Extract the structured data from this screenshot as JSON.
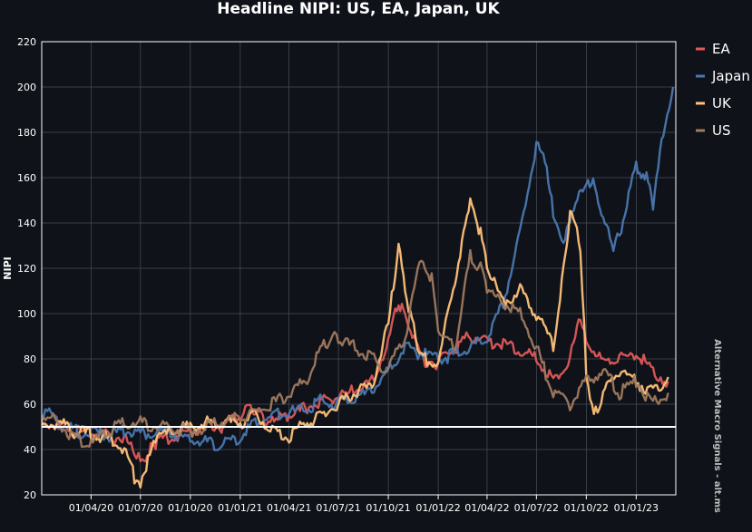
{
  "chart_data": {
    "type": "line",
    "title": "Headline NIPI: US, EA, Japan, UK",
    "xlabel": "",
    "ylabel": "NIPI",
    "x_tick_labels": [
      "01/04/20",
      "01/07/20",
      "01/10/20",
      "01/01/21",
      "01/04/21",
      "01/07/21",
      "01/10/21",
      "01/01/22",
      "01/04/22",
      "01/07/22",
      "01/10/22",
      "01/01/23"
    ],
    "x_range": [
      "2020-01-01",
      "2023-03-15"
    ],
    "ylim": [
      20,
      220
    ],
    "y_ticks": [
      20,
      40,
      60,
      80,
      100,
      120,
      140,
      160,
      180,
      200,
      220
    ],
    "reference_line": {
      "y": 50,
      "color": "#ffffff"
    },
    "grid": true,
    "legend_position": "right",
    "source_note": "Alternative Macro Signals - alt.ms",
    "series": [
      {
        "name": "EA",
        "color": "#e05a5a",
        "points": [
          [
            "2020-01-01",
            52
          ],
          [
            "2020-02-01",
            51
          ],
          [
            "2020-03-01",
            48
          ],
          [
            "2020-04-01",
            47
          ],
          [
            "2020-05-01",
            46
          ],
          [
            "2020-06-01",
            45
          ],
          [
            "2020-06-20",
            38
          ],
          [
            "2020-07-01",
            35
          ],
          [
            "2020-07-20",
            40
          ],
          [
            "2020-08-01",
            44
          ],
          [
            "2020-09-01",
            46
          ],
          [
            "2020-10-01",
            48
          ],
          [
            "2020-11-01",
            51
          ],
          [
            "2020-12-01",
            50
          ],
          [
            "2021-01-01",
            55
          ],
          [
            "2021-01-20",
            60
          ],
          [
            "2021-02-01",
            55
          ],
          [
            "2021-03-01",
            52
          ],
          [
            "2021-04-01",
            55
          ],
          [
            "2021-05-01",
            58
          ],
          [
            "2021-06-01",
            62
          ],
          [
            "2021-07-01",
            63
          ],
          [
            "2021-08-01",
            66
          ],
          [
            "2021-09-01",
            70
          ],
          [
            "2021-10-01",
            88
          ],
          [
            "2021-10-20",
            105
          ],
          [
            "2021-11-01",
            100
          ],
          [
            "2021-12-01",
            80
          ],
          [
            "2022-01-01",
            78
          ],
          [
            "2022-02-01",
            85
          ],
          [
            "2022-03-01",
            90
          ],
          [
            "2022-04-01",
            88
          ],
          [
            "2022-05-01",
            86
          ],
          [
            "2022-06-01",
            84
          ],
          [
            "2022-07-01",
            80
          ],
          [
            "2022-08-01",
            70
          ],
          [
            "2022-09-01",
            80
          ],
          [
            "2022-09-20",
            98
          ],
          [
            "2022-10-01",
            90
          ],
          [
            "2022-11-01",
            78
          ],
          [
            "2022-12-01",
            80
          ],
          [
            "2023-01-01",
            82
          ],
          [
            "2023-02-01",
            75
          ],
          [
            "2023-03-01",
            70
          ]
        ]
      },
      {
        "name": "Japan",
        "color": "#4a78b0",
        "points": [
          [
            "2020-01-01",
            58
          ],
          [
            "2020-02-01",
            52
          ],
          [
            "2020-03-01",
            48
          ],
          [
            "2020-04-01",
            47
          ],
          [
            "2020-05-01",
            46
          ],
          [
            "2020-06-01",
            48
          ],
          [
            "2020-07-01",
            47
          ],
          [
            "2020-08-01",
            48
          ],
          [
            "2020-09-01",
            47
          ],
          [
            "2020-10-01",
            44
          ],
          [
            "2020-11-01",
            43
          ],
          [
            "2020-12-01",
            42
          ],
          [
            "2021-01-01",
            46
          ],
          [
            "2021-02-01",
            52
          ],
          [
            "2021-03-01",
            55
          ],
          [
            "2021-04-01",
            56
          ],
          [
            "2021-05-01",
            58
          ],
          [
            "2021-06-01",
            62
          ],
          [
            "2021-07-01",
            60
          ],
          [
            "2021-08-01",
            62
          ],
          [
            "2021-09-01",
            66
          ],
          [
            "2021-10-01",
            75
          ],
          [
            "2021-11-01",
            85
          ],
          [
            "2021-12-01",
            82
          ],
          [
            "2022-01-01",
            80
          ],
          [
            "2022-02-01",
            82
          ],
          [
            "2022-03-01",
            85
          ],
          [
            "2022-04-01",
            90
          ],
          [
            "2022-05-01",
            105
          ],
          [
            "2022-06-01",
            135
          ],
          [
            "2022-07-01",
            175
          ],
          [
            "2022-07-20",
            165
          ],
          [
            "2022-08-01",
            145
          ],
          [
            "2022-08-20",
            130
          ],
          [
            "2022-09-01",
            140
          ],
          [
            "2022-10-01",
            160
          ],
          [
            "2022-10-20",
            155
          ],
          [
            "2022-11-01",
            140
          ],
          [
            "2022-11-20",
            130
          ],
          [
            "2022-12-01",
            135
          ],
          [
            "2023-01-01",
            165
          ],
          [
            "2023-01-20",
            160
          ],
          [
            "2023-02-01",
            148
          ],
          [
            "2023-02-20",
            180
          ],
          [
            "2023-03-10",
            200
          ]
        ]
      },
      {
        "name": "UK",
        "color": "#ffc27a",
        "points": [
          [
            "2020-01-01",
            50
          ],
          [
            "2020-02-01",
            52
          ],
          [
            "2020-03-01",
            48
          ],
          [
            "2020-04-01",
            47
          ],
          [
            "2020-05-01",
            45
          ],
          [
            "2020-06-01",
            40
          ],
          [
            "2020-06-20",
            28
          ],
          [
            "2020-07-01",
            26
          ],
          [
            "2020-07-15",
            35
          ],
          [
            "2020-08-01",
            45
          ],
          [
            "2020-09-01",
            48
          ],
          [
            "2020-10-01",
            50
          ],
          [
            "2020-11-01",
            52
          ],
          [
            "2020-12-01",
            52
          ],
          [
            "2021-01-01",
            52
          ],
          [
            "2021-02-01",
            55
          ],
          [
            "2021-03-01",
            48
          ],
          [
            "2021-04-01",
            45
          ],
          [
            "2021-05-01",
            52
          ],
          [
            "2021-06-01",
            55
          ],
          [
            "2021-07-01",
            60
          ],
          [
            "2021-08-01",
            65
          ],
          [
            "2021-09-01",
            68
          ],
          [
            "2021-10-01",
            95
          ],
          [
            "2021-10-20",
            130
          ],
          [
            "2021-11-01",
            110
          ],
          [
            "2021-11-20",
            90
          ],
          [
            "2021-12-01",
            80
          ],
          [
            "2022-01-01",
            78
          ],
          [
            "2022-02-01",
            115
          ],
          [
            "2022-02-20",
            140
          ],
          [
            "2022-03-01",
            150
          ],
          [
            "2022-03-20",
            135
          ],
          [
            "2022-04-01",
            120
          ],
          [
            "2022-05-01",
            105
          ],
          [
            "2022-06-01",
            110
          ],
          [
            "2022-07-01",
            100
          ],
          [
            "2022-08-01",
            85
          ],
          [
            "2022-08-20",
            120
          ],
          [
            "2022-09-01",
            145
          ],
          [
            "2022-09-20",
            130
          ],
          [
            "2022-10-01",
            75
          ],
          [
            "2022-10-15",
            55
          ],
          [
            "2022-11-01",
            65
          ],
          [
            "2022-12-01",
            75
          ],
          [
            "2023-01-01",
            70
          ],
          [
            "2023-02-01",
            65
          ],
          [
            "2023-03-01",
            72
          ]
        ]
      },
      {
        "name": "US",
        "color": "#a07a5f",
        "points": [
          [
            "2020-01-01",
            55
          ],
          [
            "2020-02-01",
            52
          ],
          [
            "2020-03-01",
            45
          ],
          [
            "2020-04-01",
            42
          ],
          [
            "2020-05-01",
            48
          ],
          [
            "2020-06-01",
            52
          ],
          [
            "2020-07-01",
            52
          ],
          [
            "2020-08-01",
            50
          ],
          [
            "2020-09-01",
            49
          ],
          [
            "2020-10-01",
            48
          ],
          [
            "2020-11-01",
            50
          ],
          [
            "2020-12-01",
            52
          ],
          [
            "2021-01-01",
            54
          ],
          [
            "2021-02-01",
            57
          ],
          [
            "2021-03-01",
            60
          ],
          [
            "2021-04-01",
            65
          ],
          [
            "2021-05-01",
            70
          ],
          [
            "2021-06-01",
            85
          ],
          [
            "2021-06-20",
            90
          ],
          [
            "2021-07-01",
            88
          ],
          [
            "2021-08-01",
            85
          ],
          [
            "2021-09-01",
            80
          ],
          [
            "2021-10-01",
            75
          ],
          [
            "2021-11-01",
            90
          ],
          [
            "2021-12-01",
            125
          ],
          [
            "2021-12-20",
            115
          ],
          [
            "2022-01-01",
            90
          ],
          [
            "2022-02-01",
            85
          ],
          [
            "2022-03-01",
            125
          ],
          [
            "2022-03-20",
            120
          ],
          [
            "2022-04-01",
            110
          ],
          [
            "2022-05-01",
            105
          ],
          [
            "2022-06-01",
            100
          ],
          [
            "2022-07-01",
            85
          ],
          [
            "2022-08-01",
            65
          ],
          [
            "2022-09-01",
            60
          ],
          [
            "2022-10-01",
            70
          ],
          [
            "2022-11-01",
            75
          ],
          [
            "2022-12-01",
            65
          ],
          [
            "2023-01-01",
            70
          ],
          [
            "2023-02-01",
            60
          ],
          [
            "2023-03-01",
            65
          ]
        ]
      }
    ]
  }
}
